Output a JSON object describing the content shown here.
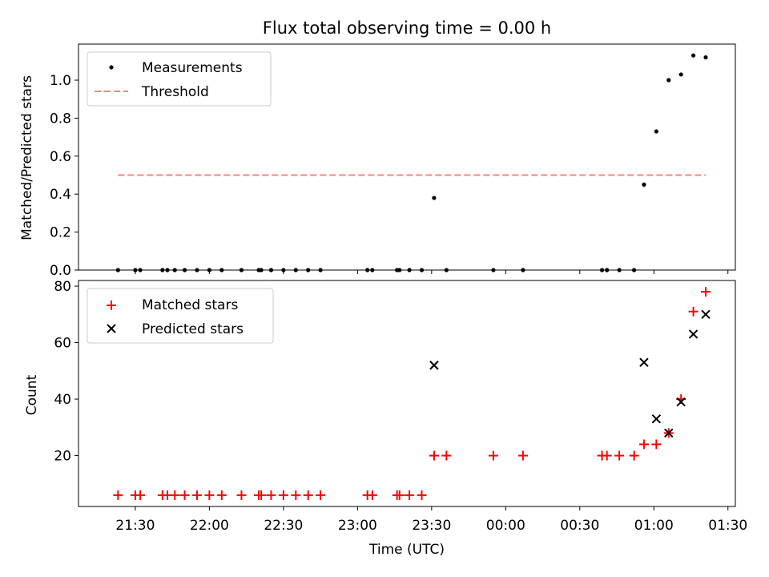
{
  "title": "Flux total observing time = 0.00 h",
  "chart_data": [
    {
      "type": "scatter",
      "panel": "top",
      "title": "Flux total observing time = 0.00 h",
      "ylabel": "Matched/Predicted stars",
      "xlabel": "",
      "ylim": [
        0,
        1.19
      ],
      "yticks": [
        0.0,
        0.2,
        0.4,
        0.6,
        0.8,
        1.0
      ],
      "ytick_labels": [
        "0.0",
        "0.2",
        "0.4",
        "0.6",
        "0.8",
        "1.0"
      ],
      "legend_position": "upper-left",
      "series": [
        {
          "name": "Measurements",
          "kind": "scatter",
          "marker": "dot",
          "color": "#000000",
          "points": [
            [
              "21:23",
              0
            ],
            [
              "21:30",
              0
            ],
            [
              "21:32",
              0
            ],
            [
              "21:41",
              0
            ],
            [
              "21:43",
              0
            ],
            [
              "21:46",
              0
            ],
            [
              "21:50",
              0
            ],
            [
              "21:55",
              0
            ],
            [
              "22:00",
              0
            ],
            [
              "22:05",
              0
            ],
            [
              "22:13",
              0
            ],
            [
              "22:20",
              0
            ],
            [
              "22:21",
              0
            ],
            [
              "22:25",
              0
            ],
            [
              "22:30",
              0
            ],
            [
              "22:35",
              0
            ],
            [
              "22:40",
              0
            ],
            [
              "22:45",
              0
            ],
            [
              "23:04",
              0
            ],
            [
              "23:06",
              0
            ],
            [
              "23:16",
              0
            ],
            [
              "23:17",
              0
            ],
            [
              "23:21",
              0
            ],
            [
              "23:26",
              0
            ],
            [
              "23:31",
              0.38
            ],
            [
              "23:36",
              0
            ],
            [
              "23:55",
              0
            ],
            [
              "00:07",
              0
            ],
            [
              "00:39",
              0
            ],
            [
              "00:41",
              0
            ],
            [
              "00:46",
              0
            ],
            [
              "00:52",
              0
            ],
            [
              "00:56",
              0.45
            ],
            [
              "01:01",
              0.73
            ],
            [
              "01:06",
              1.0
            ],
            [
              "01:11",
              1.03
            ],
            [
              "01:16",
              1.13
            ],
            [
              "01:21",
              1.12
            ]
          ]
        },
        {
          "name": "Threshold",
          "kind": "line",
          "style": "dashed",
          "color": "#ff7f7f",
          "points": [
            [
              "21:23",
              0.5
            ],
            [
              "01:21",
              0.5
            ]
          ]
        }
      ]
    },
    {
      "type": "scatter",
      "panel": "bottom",
      "xlabel": "Time (UTC)",
      "ylabel": "Count",
      "ylim": [
        2,
        82
      ],
      "yticks": [
        20,
        40,
        60,
        80
      ],
      "ytick_labels": [
        "20",
        "40",
        "60",
        "80"
      ],
      "xlim": [
        "21:07",
        "01:33"
      ],
      "xticks": [
        "21:30",
        "22:00",
        "22:30",
        "23:00",
        "23:30",
        "00:00",
        "00:30",
        "01:00",
        "01:30"
      ],
      "xtick_labels": [
        "21:30",
        "22:00",
        "22:30",
        "23:00",
        "23:30",
        "00:00",
        "00:30",
        "01:00",
        "01:30"
      ],
      "legend_position": "upper-left",
      "series": [
        {
          "name": "Matched stars",
          "kind": "scatter",
          "marker": "plus",
          "color": "#ff0000",
          "points": [
            [
              "21:23",
              6
            ],
            [
              "21:30",
              6
            ],
            [
              "21:32",
              6
            ],
            [
              "21:41",
              6
            ],
            [
              "21:43",
              6
            ],
            [
              "21:46",
              6
            ],
            [
              "21:50",
              6
            ],
            [
              "21:55",
              6
            ],
            [
              "22:00",
              6
            ],
            [
              "22:05",
              6
            ],
            [
              "22:13",
              6
            ],
            [
              "22:20",
              6
            ],
            [
              "22:21",
              6
            ],
            [
              "22:25",
              6
            ],
            [
              "22:30",
              6
            ],
            [
              "22:35",
              6
            ],
            [
              "22:40",
              6
            ],
            [
              "22:45",
              6
            ],
            [
              "23:04",
              6
            ],
            [
              "23:06",
              6
            ],
            [
              "23:16",
              6
            ],
            [
              "23:17",
              6
            ],
            [
              "23:21",
              6
            ],
            [
              "23:26",
              6
            ],
            [
              "23:31",
              20
            ],
            [
              "23:36",
              20
            ],
            [
              "23:55",
              20
            ],
            [
              "00:07",
              20
            ],
            [
              "00:39",
              20
            ],
            [
              "00:41",
              20
            ],
            [
              "00:46",
              20
            ],
            [
              "00:52",
              20
            ],
            [
              "00:56",
              24
            ],
            [
              "01:01",
              24
            ],
            [
              "01:06",
              28
            ],
            [
              "01:11",
              40
            ],
            [
              "01:16",
              71
            ],
            [
              "01:21",
              78
            ]
          ]
        },
        {
          "name": "Predicted stars",
          "kind": "scatter",
          "marker": "x",
          "color": "#000000",
          "points": [
            [
              "23:31",
              52
            ],
            [
              "00:56",
              53
            ],
            [
              "01:01",
              33
            ],
            [
              "01:06",
              28
            ],
            [
              "01:11",
              39
            ],
            [
              "01:16",
              63
            ],
            [
              "01:21",
              70
            ]
          ]
        }
      ]
    }
  ]
}
